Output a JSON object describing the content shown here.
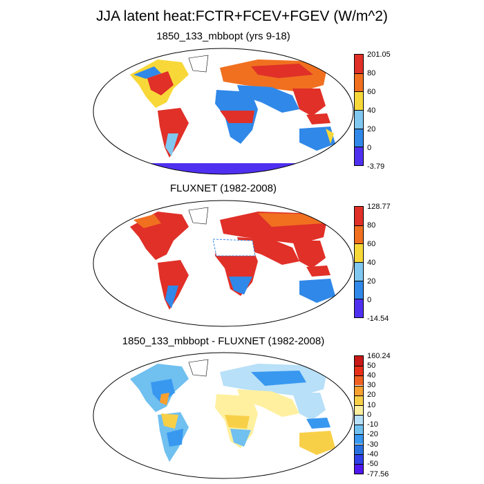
{
  "figure": {
    "title": "JJA latent heat:FCTR+FCEV+FGEV (W/m^2)"
  },
  "panels": [
    {
      "title": "1850_133_mbbopt (yrs 9-18)",
      "colorbar": {
        "labels": [
          "201.05",
          "80",
          "60",
          "40",
          "20",
          "0",
          "-3.79"
        ],
        "colors": [
          "#e03028",
          "#f07020",
          "#f8d838",
          "#80c8f0",
          "#3088e8",
          "#5030f0"
        ]
      }
    },
    {
      "title": "FLUXNET (1982-2008)",
      "colorbar": {
        "labels": [
          "128.77",
          "80",
          "60",
          "40",
          "20",
          "0",
          "-14.54"
        ],
        "colors": [
          "#e03028",
          "#f07020",
          "#f8d838",
          "#80c8f0",
          "#3088e8",
          "#5030f0"
        ]
      }
    },
    {
      "title": "1850_133_mbbopt - FLUXNET (1982-2008)",
      "colorbar": {
        "labels": [
          "160.24",
          "50",
          "40",
          "30",
          "20",
          "10",
          "0",
          "-10",
          "-20",
          "-30",
          "-40",
          "-50",
          "-77.56"
        ],
        "colors": [
          "#c81818",
          "#e83018",
          "#f06020",
          "#f8a030",
          "#f8d048",
          "#fff0a0",
          "#b8e0f8",
          "#70c0f0",
          "#3898f0",
          "#2870e0",
          "#3040e8",
          "#5018f0"
        ]
      }
    }
  ]
}
